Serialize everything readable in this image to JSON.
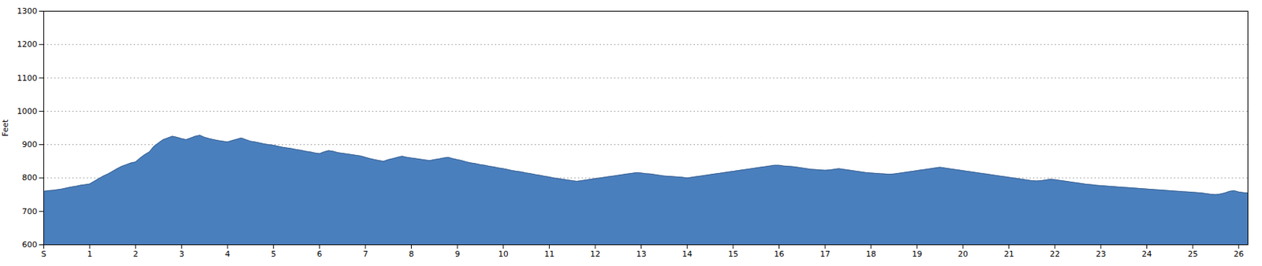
{
  "chart_data": {
    "type": "area",
    "ylabel": "Feet",
    "color": "#4a7fbe",
    "grid": true,
    "xlim": [
      0,
      26.2
    ],
    "xticks": [
      {
        "value": 0,
        "label": "S"
      },
      1,
      2,
      3,
      4,
      5,
      6,
      7,
      8,
      9,
      10,
      11,
      12,
      13,
      14,
      15,
      16,
      17,
      18,
      19,
      20,
      21,
      22,
      23,
      24,
      25,
      26
    ],
    "ylim": [
      600,
      1300
    ],
    "yticks": [
      600,
      700,
      800,
      900,
      1000,
      1100,
      1200,
      1300
    ],
    "x": [
      0,
      0.1,
      0.2,
      0.3,
      0.4,
      0.5,
      0.6,
      0.7,
      0.8,
      0.9,
      1,
      1.1,
      1.2,
      1.3,
      1.4,
      1.5,
      1.6,
      1.7,
      1.8,
      1.9,
      2,
      2.1,
      2.2,
      2.3,
      2.4,
      2.5,
      2.6,
      2.7,
      2.8,
      2.9,
      3,
      3.1,
      3.2,
      3.3,
      3.4,
      3.5,
      3.6,
      3.7,
      3.8,
      3.9,
      4,
      4.1,
      4.2,
      4.3,
      4.4,
      4.5,
      4.6,
      4.7,
      4.8,
      4.9,
      5,
      5.1,
      5.2,
      5.3,
      5.4,
      5.5,
      5.6,
      5.7,
      5.8,
      5.9,
      6,
      6.1,
      6.2,
      6.3,
      6.4,
      6.5,
      6.6,
      6.7,
      6.8,
      6.9,
      7,
      7.1,
      7.2,
      7.3,
      7.4,
      7.5,
      7.6,
      7.7,
      7.8,
      7.9,
      8,
      8.1,
      8.2,
      8.3,
      8.4,
      8.5,
      8.6,
      8.7,
      8.8,
      8.9,
      9,
      9.1,
      9.2,
      9.3,
      9.4,
      9.5,
      9.6,
      9.7,
      9.8,
      9.9,
      10,
      10.1,
      10.2,
      10.3,
      10.4,
      10.5,
      10.6,
      10.7,
      10.8,
      10.9,
      11,
      11.1,
      11.2,
      11.3,
      11.4,
      11.5,
      11.6,
      11.7,
      11.8,
      11.9,
      12,
      12.1,
      12.2,
      12.3,
      12.4,
      12.5,
      12.6,
      12.7,
      12.8,
      12.9,
      13,
      13.1,
      13.2,
      13.3,
      13.4,
      13.5,
      13.6,
      13.7,
      13.8,
      13.9,
      14,
      14.1,
      14.2,
      14.3,
      14.4,
      14.5,
      14.6,
      14.7,
      14.8,
      14.9,
      15,
      15.1,
      15.2,
      15.3,
      15.4,
      15.5,
      15.6,
      15.7,
      15.8,
      15.9,
      16,
      16.1,
      16.2,
      16.3,
      16.4,
      16.5,
      16.6,
      16.7,
      16.8,
      16.9,
      17,
      17.1,
      17.2,
      17.3,
      17.4,
      17.5,
      17.6,
      17.7,
      17.8,
      17.9,
      18,
      18.1,
      18.2,
      18.3,
      18.4,
      18.5,
      18.6,
      18.7,
      18.8,
      18.9,
      19,
      19.1,
      19.2,
      19.3,
      19.4,
      19.5,
      19.6,
      19.7,
      19.8,
      19.9,
      20,
      20.1,
      20.2,
      20.3,
      20.4,
      20.5,
      20.6,
      20.7,
      20.8,
      20.9,
      21,
      21.1,
      21.2,
      21.3,
      21.4,
      21.5,
      21.6,
      21.7,
      21.8,
      21.9,
      22,
      22.1,
      22.2,
      22.3,
      22.4,
      22.5,
      22.6,
      22.7,
      22.8,
      22.9,
      23,
      23.1,
      23.2,
      23.3,
      23.4,
      23.5,
      23.6,
      23.7,
      23.8,
      23.9,
      24,
      24.1,
      24.2,
      24.3,
      24.4,
      24.5,
      24.6,
      24.7,
      24.8,
      24.9,
      25,
      25.1,
      25.2,
      25.3,
      25.4,
      25.5,
      25.6,
      25.7,
      25.8,
      25.9,
      26,
      26.1,
      26.2
    ],
    "values": [
      760,
      762,
      763,
      765,
      767,
      770,
      773,
      775,
      778,
      780,
      782,
      790,
      798,
      806,
      812,
      820,
      828,
      835,
      840,
      845,
      848,
      860,
      870,
      878,
      895,
      905,
      915,
      920,
      925,
      922,
      918,
      915,
      920,
      925,
      928,
      922,
      918,
      915,
      912,
      910,
      908,
      912,
      916,
      920,
      915,
      910,
      908,
      905,
      902,
      900,
      898,
      895,
      892,
      890,
      888,
      885,
      883,
      880,
      878,
      875,
      873,
      878,
      882,
      880,
      876,
      874,
      872,
      870,
      868,
      866,
      862,
      858,
      855,
      852,
      850,
      855,
      858,
      862,
      865,
      862,
      860,
      858,
      856,
      854,
      852,
      855,
      857,
      860,
      862,
      858,
      855,
      852,
      848,
      845,
      843,
      840,
      838,
      835,
      833,
      830,
      828,
      825,
      822,
      820,
      818,
      815,
      813,
      810,
      808,
      805,
      803,
      800,
      798,
      796,
      794,
      792,
      790,
      792,
      794,
      796,
      798,
      800,
      802,
      804,
      806,
      808,
      810,
      812,
      814,
      816,
      815,
      813,
      812,
      810,
      808,
      806,
      805,
      804,
      803,
      802,
      800,
      802,
      804,
      806,
      808,
      810,
      812,
      814,
      816,
      818,
      820,
      822,
      824,
      826,
      828,
      830,
      832,
      834,
      836,
      838,
      838,
      836,
      835,
      834,
      832,
      830,
      828,
      826,
      825,
      824,
      823,
      824,
      826,
      828,
      826,
      824,
      822,
      820,
      818,
      816,
      815,
      814,
      813,
      812,
      811,
      812,
      814,
      816,
      818,
      820,
      822,
      824,
      826,
      828,
      830,
      832,
      830,
      828,
      826,
      824,
      822,
      820,
      818,
      816,
      814,
      812,
      810,
      808,
      806,
      804,
      802,
      800,
      798,
      796,
      794,
      792,
      791,
      792,
      794,
      796,
      795,
      793,
      791,
      789,
      787,
      785,
      783,
      781,
      780,
      778,
      777,
      776,
      775,
      774,
      773,
      772,
      771,
      770,
      769,
      768,
      767,
      766,
      765,
      764,
      763,
      762,
      761,
      760,
      759,
      758,
      757,
      756,
      755,
      753,
      751,
      750,
      752,
      755,
      760,
      762,
      758,
      756,
      755
    ]
  }
}
